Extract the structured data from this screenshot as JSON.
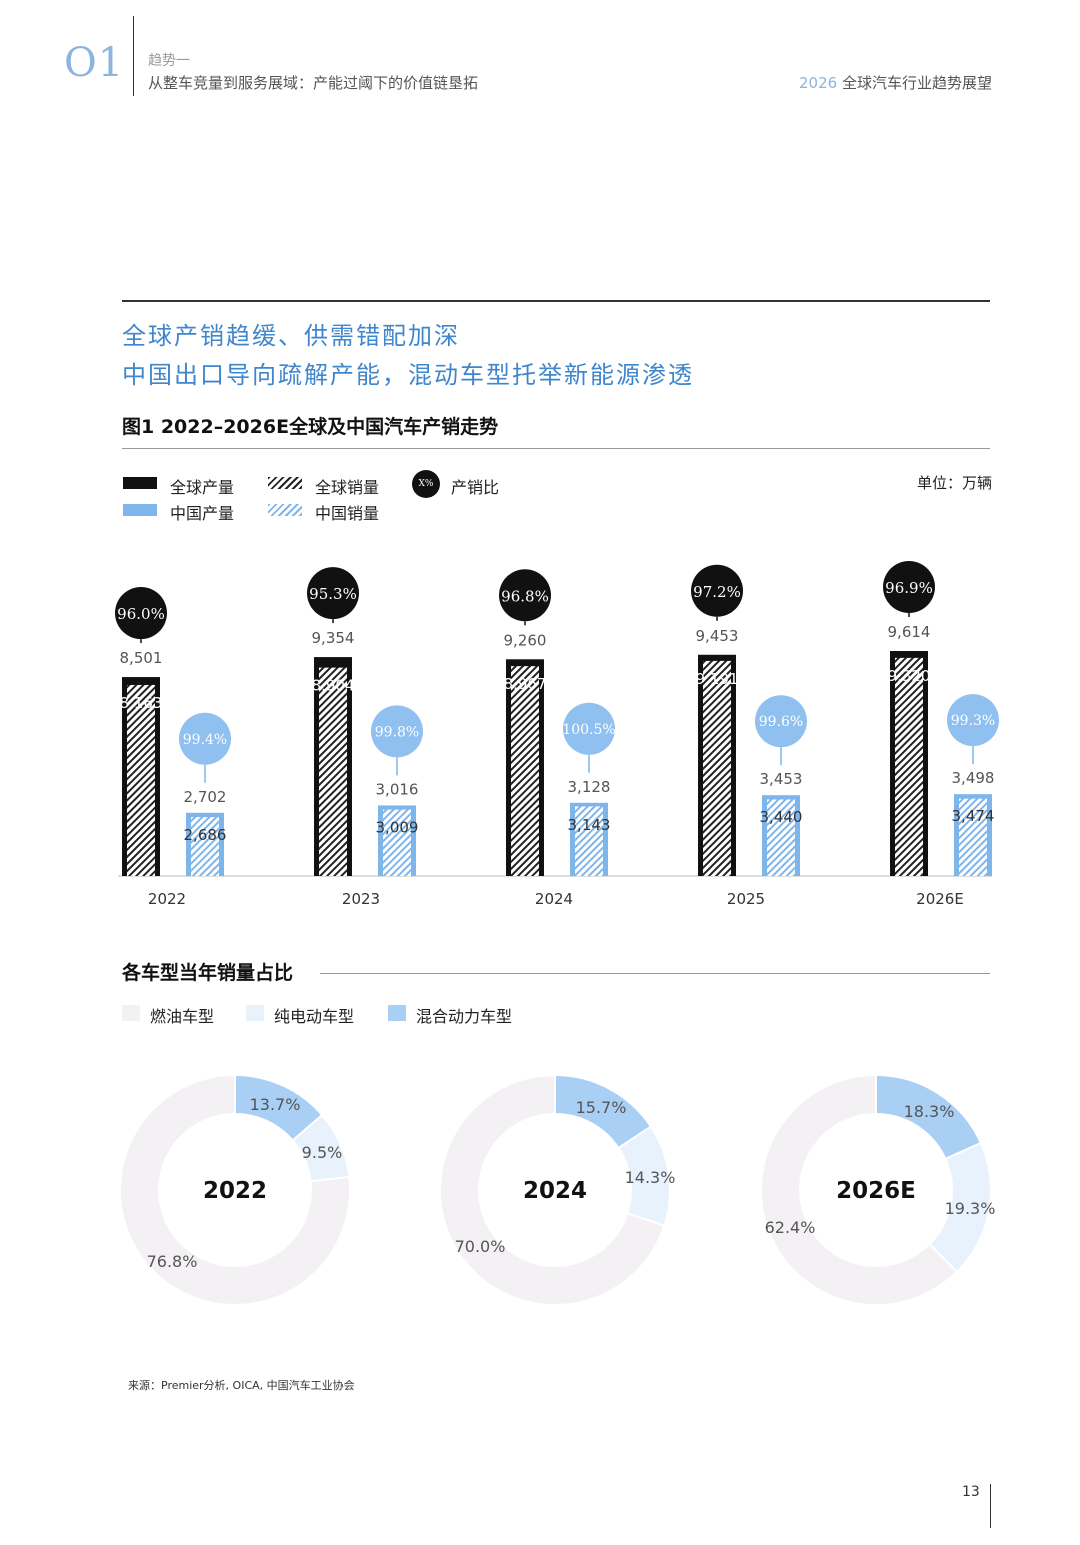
{
  "header": {
    "section_number": "O1",
    "trend_label": "趋势一",
    "subtitle": "从整车竞量到服务展域：产能过阈下的价值链垦拓",
    "report_year": "2026",
    "report_title": "全球汽车行业趋势展望"
  },
  "headline": {
    "line1": "全球产销趋缓、供需错配加深",
    "line2": "中国出口导向疏解产能，混动车型托举新能源渗透"
  },
  "figure": {
    "title": "图1 2022–2026E全球及中国汽车产销走势",
    "unit": "单位：万辆",
    "legend": {
      "global_production": "全球产量",
      "global_sales": "全球销量",
      "ratio": "产销比",
      "ratio_symbol": "X%",
      "china_production": "中国产量",
      "china_sales": "中国销量"
    }
  },
  "mix_section": {
    "title": "各车型当年销量占比",
    "legend": {
      "ice": "燃油车型",
      "bev": "纯电动车型",
      "hev": "混合动力车型"
    }
  },
  "colors": {
    "black": "#111111",
    "blue": "#7eb6ec",
    "blue_light": "#e8f2fc",
    "ice": "#f3f1f3",
    "accent_text": "#3f86cc"
  },
  "chart_data": [
    {
      "type": "bar",
      "categories": [
        "2022",
        "2023",
        "2024",
        "2025",
        "2026E"
      ],
      "series": [
        {
          "name": "全球产量",
          "values": [
            8501,
            9354,
            9260,
            9453,
            9614
          ],
          "labels": [
            "8,501",
            "9,354",
            "9,260",
            "9,453",
            "9,614"
          ]
        },
        {
          "name": "全球销量",
          "values": [
            8163,
            8904,
            8967,
            9191,
            9320
          ],
          "labels": [
            "8,163",
            "8,904",
            "8,967",
            "9,191",
            "9,320"
          ]
        },
        {
          "name": "中国产量",
          "values": [
            2702,
            3016,
            3128,
            3453,
            3498
          ],
          "labels": [
            "2,702",
            "3,016",
            "3,128",
            "3,453",
            "3,498"
          ]
        },
        {
          "name": "中国销量",
          "values": [
            2686,
            3009,
            3143,
            3440,
            3474
          ],
          "labels": [
            "2,686",
            "3,009",
            "3,143",
            "3,440",
            "3,474"
          ]
        }
      ],
      "ratios": {
        "global": [
          "96.0%",
          "95.3%",
          "96.8%",
          "97.2%",
          "96.9%"
        ],
        "china": [
          "99.4%",
          "99.8%",
          "100.5%",
          "99.6%",
          "99.3%"
        ]
      },
      "xlabel": "",
      "ylabel": "",
      "ylim": [
        0,
        10000
      ],
      "grid": false,
      "legend_position": "top-left"
    },
    {
      "type": "pie",
      "charts": [
        {
          "year": "2022",
          "labels": [
            "混合动力车型",
            "纯电动车型",
            "燃油车型"
          ],
          "values": [
            13.7,
            9.5,
            76.8
          ],
          "value_labels": [
            "13.7%",
            "9.5%",
            "76.8%"
          ]
        },
        {
          "year": "2024",
          "labels": [
            "混合动力车型",
            "纯电动车型",
            "燃油车型"
          ],
          "values": [
            15.7,
            14.3,
            70.0
          ],
          "value_labels": [
            "15.7%",
            "14.3%",
            "70.0%"
          ]
        },
        {
          "year": "2026E",
          "labels": [
            "混合动力车型",
            "纯电动车型",
            "燃油车型"
          ],
          "values": [
            18.3,
            19.3,
            62.4
          ],
          "value_labels": [
            "18.3%",
            "19.3%",
            "62.4%"
          ]
        }
      ],
      "style": "donut"
    }
  ],
  "footer": {
    "source": "来源：Premier分析, OICA, 中国汽车工业协会",
    "page_number": "13"
  }
}
